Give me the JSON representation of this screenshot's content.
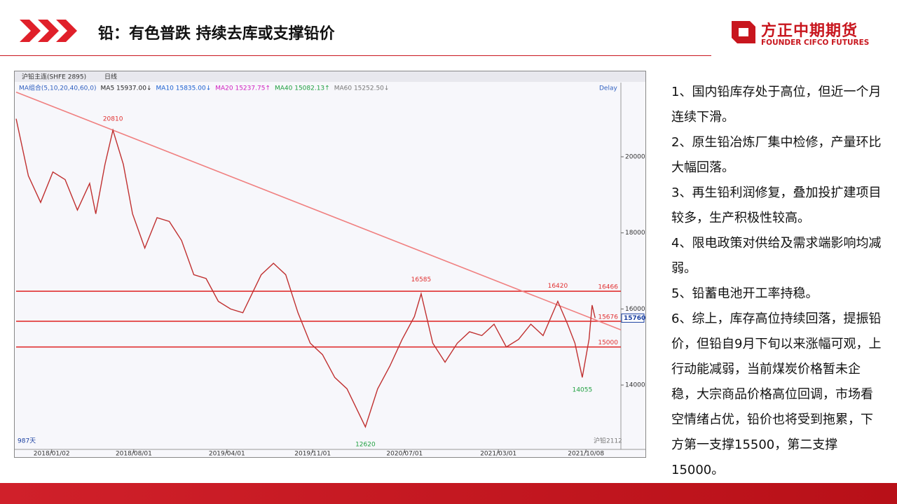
{
  "header": {
    "title": "铅：有色普跌 持续去库或支撑铅价",
    "logo_cn": "方正中期期货",
    "logo_en": "FOUNDER CIFCO FUTURES"
  },
  "chart_data": {
    "type": "line",
    "toolbar": [
      "沪铅主连(SHFE 2895)",
      "日线"
    ],
    "ma_legend": [
      {
        "text": "MA组合(5,10,20,40,60,0)",
        "color": "#3060c0"
      },
      {
        "text": "MA5 15937.00↓",
        "color": "#222222"
      },
      {
        "text": "MA10 15835.00↓",
        "color": "#1a5fd0"
      },
      {
        "text": "MA20 15237.75↑",
        "color": "#d020c0"
      },
      {
        "text": "MA40 15082.13↑",
        "color": "#20a040"
      },
      {
        "text": "MA60 15252.50↓",
        "color": "#777777"
      }
    ],
    "delay": "Delay",
    "bars_label": "987天",
    "contract_label": "沪铅2112",
    "xlim": [
      0,
      987
    ],
    "xticks": [
      {
        "value": 58,
        "label": "2018/01/02"
      },
      {
        "value": 192,
        "label": "2018/08/01"
      },
      {
        "value": 344,
        "label": "2019/04/01"
      },
      {
        "value": 484,
        "label": "2019/11/01"
      },
      {
        "value": 634,
        "label": "2020/07/01"
      },
      {
        "value": 787,
        "label": "2021/03/01"
      },
      {
        "value": 930,
        "label": "2021/10/08"
      }
    ],
    "ylim": [
      12400,
      21950
    ],
    "yticks": [
      14000,
      16000,
      18000,
      20000
    ],
    "grid": false,
    "series": [
      {
        "name": "沪铅主连",
        "color": "#c03030",
        "x": [
          0,
          20,
          40,
          60,
          80,
          100,
          120,
          130,
          145,
          158,
          175,
          190,
          210,
          230,
          250,
          270,
          290,
          310,
          330,
          350,
          370,
          400,
          420,
          440,
          460,
          480,
          500,
          520,
          540,
          570,
          590,
          610,
          630,
          650,
          661,
          680,
          700,
          720,
          740,
          760,
          780,
          800,
          820,
          840,
          860,
          884,
          900,
          912,
          924,
          935,
          940,
          945
        ],
        "values": [
          21000,
          19500,
          18800,
          19600,
          19400,
          18600,
          19300,
          18500,
          19800,
          20700,
          19800,
          18500,
          17600,
          18400,
          18300,
          17800,
          16900,
          16800,
          16200,
          16000,
          15900,
          16900,
          17200,
          16900,
          15900,
          15100,
          14800,
          14200,
          13900,
          12900,
          13900,
          14500,
          15200,
          15800,
          16400,
          15100,
          14600,
          15100,
          15400,
          15300,
          15600,
          15000,
          15200,
          15600,
          15300,
          16200,
          15600,
          15100,
          14200,
          15200,
          16100,
          15760
        ]
      }
    ],
    "trendline": {
      "x": [
        0,
        987
      ],
      "values": [
        21700,
        15450
      ],
      "color": "#f08080"
    },
    "levels": [
      {
        "value": 16466,
        "color": "#e03030"
      },
      {
        "value": 15676,
        "color": "#e03030"
      },
      {
        "value": 15000,
        "color": "#e03030"
      }
    ],
    "last_price": 15760,
    "annotations": [
      {
        "x": 158,
        "value": 20810,
        "color": "#e03030",
        "pos": "above"
      },
      {
        "x": 661,
        "value": 16585,
        "color": "#e03030",
        "pos": "above"
      },
      {
        "x": 884,
        "value": 16420,
        "color": "#e03030",
        "pos": "above"
      },
      {
        "x": 924,
        "value": 14055,
        "color": "#20a040",
        "pos": "below"
      },
      {
        "x": 570,
        "value": 12620,
        "color": "#20a040",
        "pos": "below"
      }
    ]
  },
  "notes": [
    "1、国内铅库存处于高位，但近一个月连续下滑。",
    "2、原生铅冶炼厂集中检修，产量环比大幅回落。",
    "3、再生铅利润修复，叠加投扩建项目较多，生产积极性较高。",
    "4、限电政策对供给及需求端影响均减弱。",
    "5、铅蓄电池开工率持稳。",
    "6、综上，库存高位持续回落，提振铅价，但铅自9月下旬以来涨幅可观，上行动能减弱，当前煤炭价格暂未企稳，大宗商品价格高位回调，市场看空情绪占优，铅价也将受到拖累，下方第一支撑15500，第二支撑15000。"
  ]
}
